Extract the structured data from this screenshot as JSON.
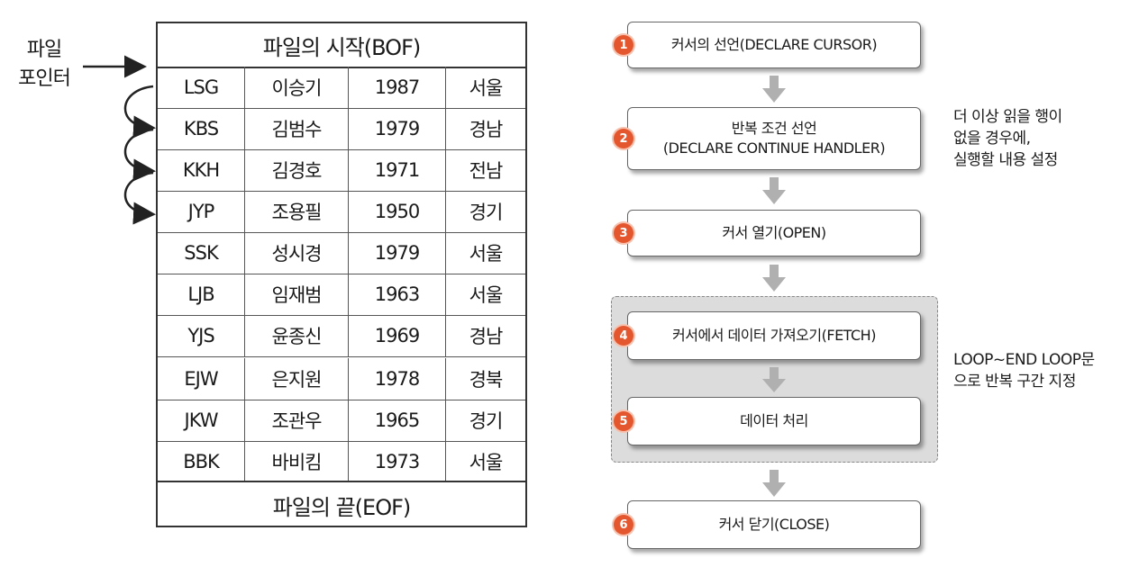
{
  "pointer": {
    "line1": "파일",
    "line2": "포인터"
  },
  "table": {
    "bof": "파일의 시작(BOF)",
    "eof": "파일의 끝(EOF)",
    "rows": [
      [
        "LSG",
        "이승기",
        "1987",
        "서울"
      ],
      [
        "KBS",
        "김범수",
        "1979",
        "경남"
      ],
      [
        "KKH",
        "김경호",
        "1971",
        "전남"
      ],
      [
        "JYP",
        "조용필",
        "1950",
        "경기"
      ],
      [
        "SSK",
        "성시경",
        "1979",
        "서울"
      ],
      [
        "LJB",
        "임재범",
        "1963",
        "서울"
      ],
      [
        "YJS",
        "윤종신",
        "1969",
        "경남"
      ],
      [
        "EJW",
        "은지원",
        "1978",
        "경북"
      ],
      [
        "JKW",
        "조관우",
        "1965",
        "경기"
      ],
      [
        "BBK",
        "바비킴",
        "1973",
        "서울"
      ]
    ]
  },
  "flow": {
    "steps": [
      {
        "num": "1",
        "text": "커서의 선언(DECLARE CURSOR)"
      },
      {
        "num": "2",
        "text_line1": "반복 조건 선언",
        "text_line2": "(DECLARE CONTINUE HANDLER)"
      },
      {
        "num": "3",
        "text": "커서 열기(OPEN)"
      },
      {
        "num": "4",
        "text": "커서에서 데이터 가져오기(FETCH)"
      },
      {
        "num": "5",
        "text": "데이터 처리"
      },
      {
        "num": "6",
        "text": "커서 닫기(CLOSE)"
      }
    ],
    "notes": {
      "handler": [
        "더 이상 읽을 행이",
        "없을 경우에,",
        "실행할 내용 설정"
      ],
      "loop": [
        "LOOP~END LOOP문",
        "으로 반복 구간 지정"
      ]
    },
    "colors": {
      "badge": "#e4572e",
      "loop_region": "#dcdcdc",
      "arrow": "#b0b0b0"
    }
  }
}
